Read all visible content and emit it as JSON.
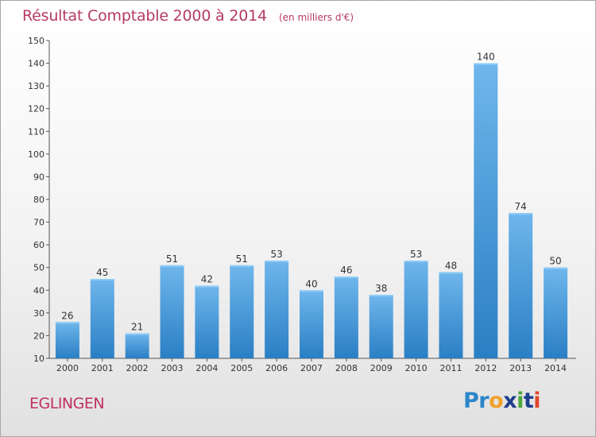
{
  "header": {
    "title": "Résultat Comptable 2000 à 2014",
    "unit": "(en milliers d'€)"
  },
  "footer": {
    "commune": "EGLINGEN",
    "logo": "Proxiti"
  },
  "colors": {
    "title": "#b53a63",
    "bar_light": "#6fb6ec",
    "bar_dark": "#2a7fc4",
    "axis": "#555555"
  },
  "chart_data": {
    "type": "bar",
    "title": "Résultat Comptable 2000 à 2014",
    "subtitle": "(en milliers d'€)",
    "categories": [
      "2000",
      "2001",
      "2002",
      "2003",
      "2004",
      "2005",
      "2006",
      "2007",
      "2008",
      "2009",
      "2010",
      "2011",
      "2012",
      "2013",
      "2014"
    ],
    "values": [
      26,
      45,
      21,
      51,
      42,
      51,
      53,
      40,
      46,
      38,
      53,
      48,
      140,
      74,
      50
    ],
    "ylim": [
      10,
      150
    ],
    "yticks": [
      10,
      20,
      30,
      40,
      50,
      60,
      70,
      80,
      90,
      100,
      110,
      120,
      130,
      140,
      150
    ],
    "grid": false,
    "data_labels": true
  }
}
